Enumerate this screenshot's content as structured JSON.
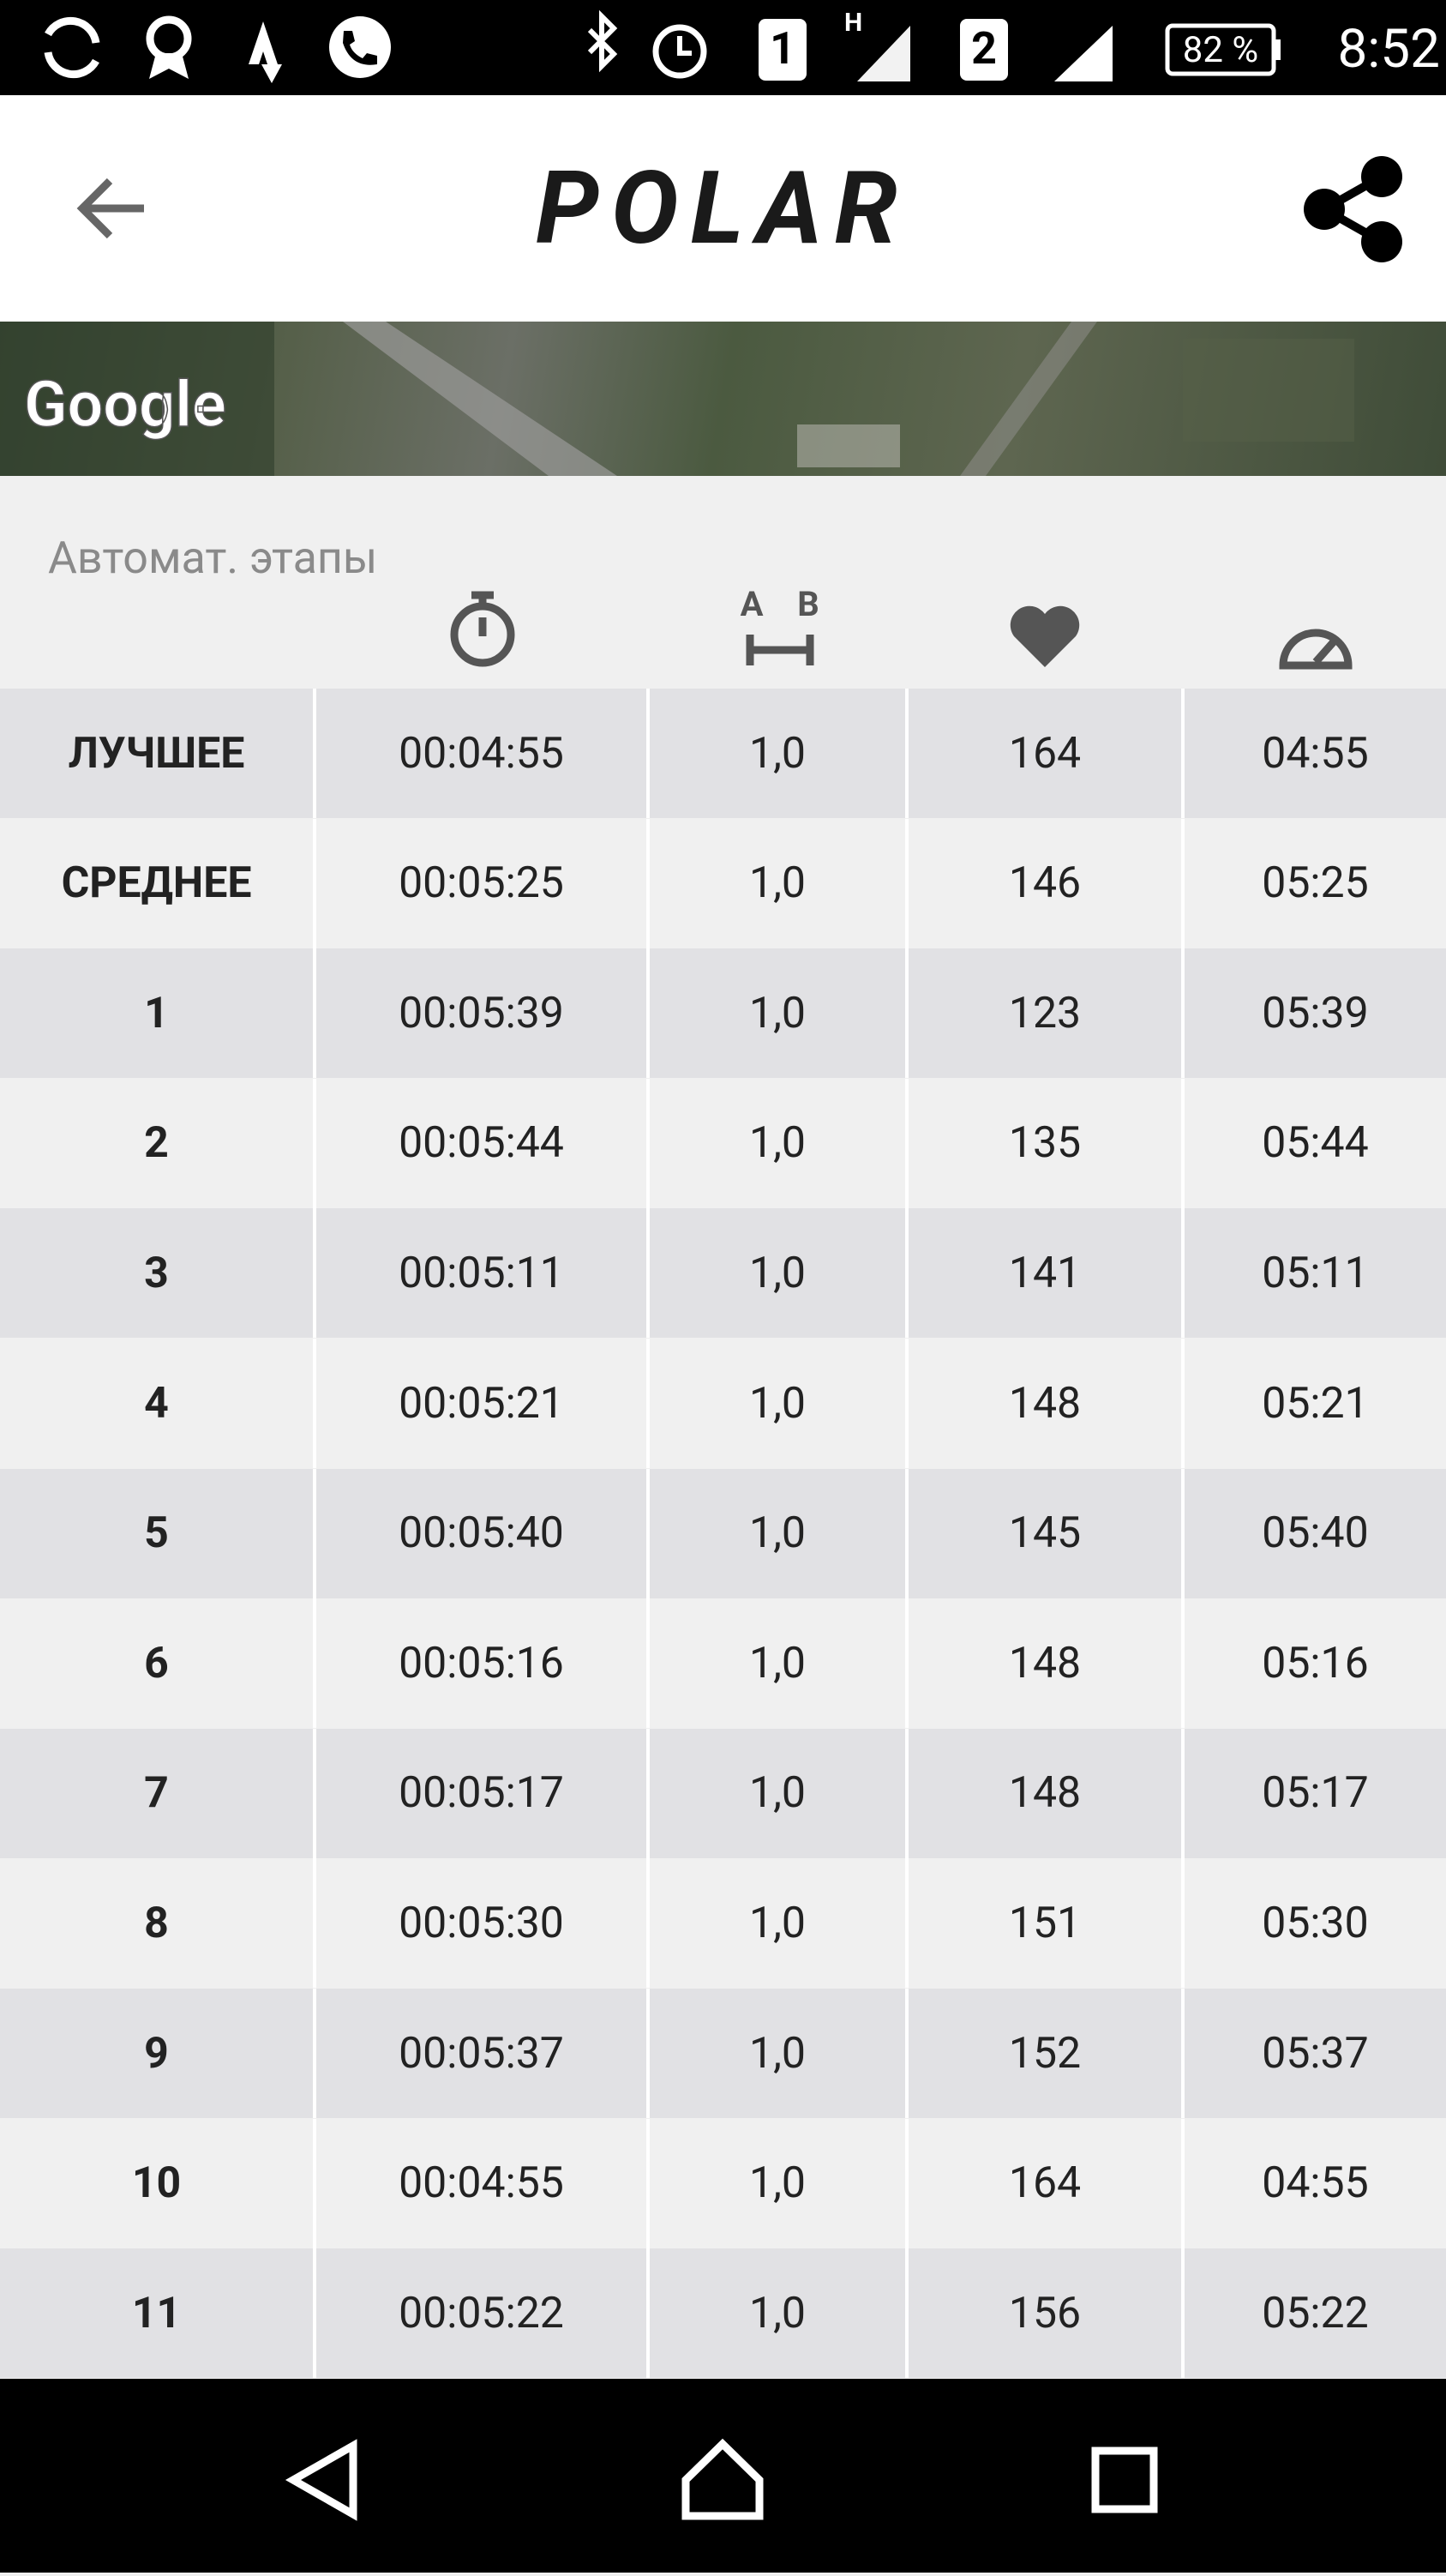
{
  "status_bar": {
    "sim1": "1",
    "network_type": "H",
    "sim2": "2",
    "battery": "82 %",
    "time": "8:52"
  },
  "header": {
    "logo": "POLAR"
  },
  "map": {
    "attribution": "Google"
  },
  "section": {
    "title": "Автомат. этапы",
    "distance_icon": [
      "A",
      "B"
    ]
  },
  "table": {
    "rows": [
      [
        "ЛУЧШЕЕ",
        "00:04:55",
        "1,0",
        "164",
        "04:55"
      ],
      [
        "СРЕДНЕЕ",
        "00:05:25",
        "1,0",
        "146",
        "05:25"
      ],
      [
        "1",
        "00:05:39",
        "1,0",
        "123",
        "05:39"
      ],
      [
        "2",
        "00:05:44",
        "1,0",
        "135",
        "05:44"
      ],
      [
        "3",
        "00:05:11",
        "1,0",
        "141",
        "05:11"
      ],
      [
        "4",
        "00:05:21",
        "1,0",
        "148",
        "05:21"
      ],
      [
        "5",
        "00:05:40",
        "1,0",
        "145",
        "05:40"
      ],
      [
        "6",
        "00:05:16",
        "1,0",
        "148",
        "05:16"
      ],
      [
        "7",
        "00:05:17",
        "1,0",
        "148",
        "05:17"
      ],
      [
        "8",
        "00:05:30",
        "1,0",
        "151",
        "05:30"
      ],
      [
        "9",
        "00:05:37",
        "1,0",
        "152",
        "05:37"
      ],
      [
        "10",
        "00:04:55",
        "1,0",
        "164",
        "04:55"
      ],
      [
        "11",
        "00:05:22",
        "1,0",
        "156",
        "05:22"
      ]
    ]
  }
}
